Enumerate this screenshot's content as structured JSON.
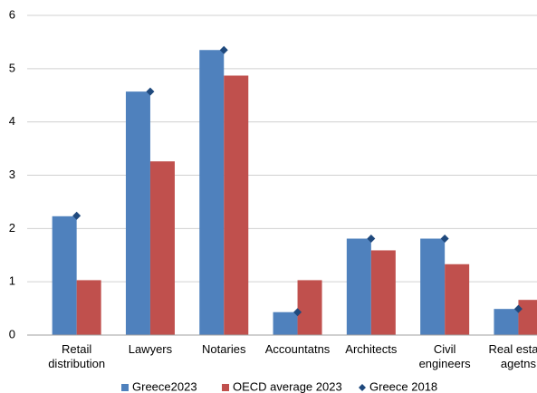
{
  "chart_data": {
    "type": "bar",
    "categories": [
      "Retail distribution",
      "Lawyers",
      "Notaries",
      "Accountatns",
      "Architects",
      "Civil engineers",
      "Real estate agetns"
    ],
    "series": [
      {
        "name": "Greece2023",
        "color": "#4f81bd",
        "values": [
          2.23,
          4.57,
          5.35,
          0.43,
          1.81,
          1.81,
          0.49
        ]
      },
      {
        "name": "OECD average 2023",
        "color": "#c0504d",
        "values": [
          1.03,
          3.26,
          4.87,
          1.03,
          1.59,
          1.33,
          0.66
        ]
      },
      {
        "name": "Greece 2018",
        "color": "#1f497d",
        "marker": "diamond",
        "values": [
          2.24,
          4.57,
          5.35,
          0.43,
          1.81,
          1.81,
          0.49
        ]
      }
    ],
    "ylim": [
      0,
      6
    ],
    "yticks": [
      0,
      1,
      2,
      3,
      4,
      5,
      6
    ],
    "grid": true
  }
}
